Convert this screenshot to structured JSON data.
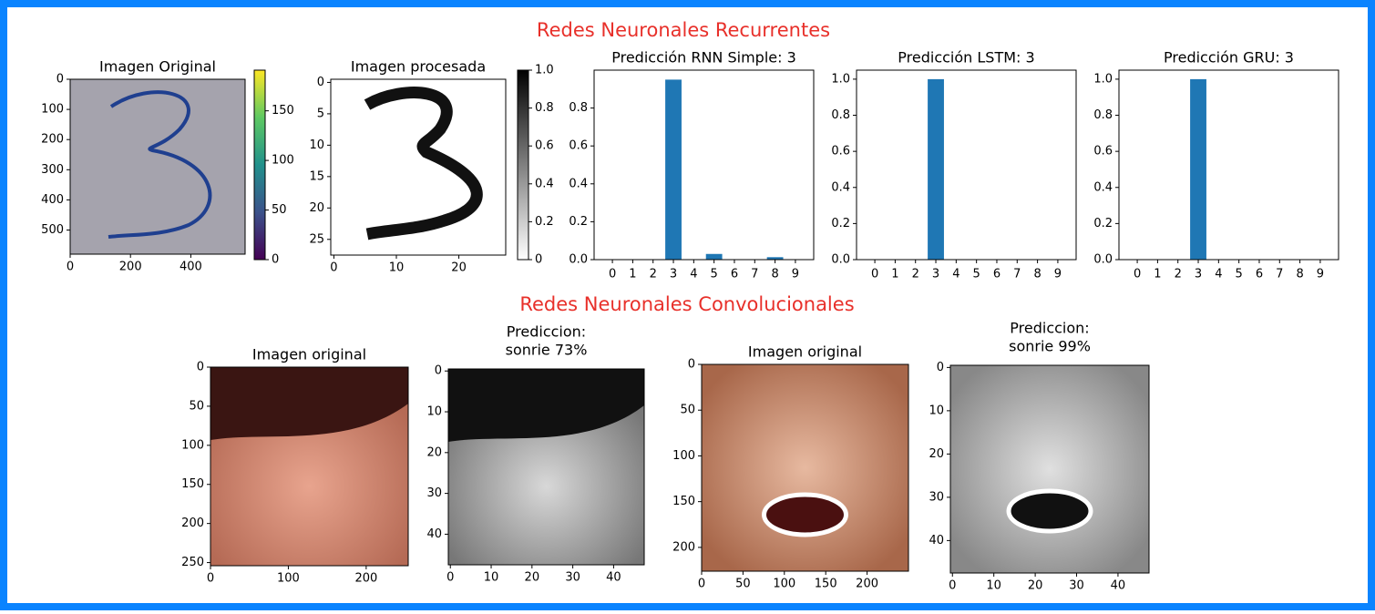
{
  "headings": [
    "Redes Neuronales Recurrentes",
    "Redes Neuronales Convolucionales"
  ],
  "chart_data": [
    {
      "type": "image",
      "title": "Imagen Original",
      "xlim": [
        0,
        580
      ],
      "ylim": [
        580,
        0
      ],
      "xticks": [
        0,
        200,
        400
      ],
      "yticks": [
        0,
        100,
        200,
        300,
        400,
        500
      ],
      "colorbar": {
        "ylim": [
          0,
          191
        ],
        "yticks": [
          0,
          50,
          100,
          150
        ],
        "colormap": "viridis"
      }
    },
    {
      "type": "image",
      "title": "Imagen procesada",
      "xlim": [
        -0.5,
        27.5
      ],
      "ylim": [
        27.5,
        -0.5
      ],
      "xticks": [
        0,
        10,
        20
      ],
      "yticks": [
        0,
        5,
        10,
        15,
        20,
        25
      ],
      "colorbar": {
        "ylim": [
          0,
          1.0
        ],
        "yticks": [
          0.0,
          0.2,
          0.4,
          0.6,
          0.8,
          {
            "value": 1.0,
            "label": "1.0"
          }
        ],
        "colormap": "gray"
      }
    },
    {
      "type": "bar",
      "title": "Predicción RNN Simple: 3",
      "categories": [
        "0",
        "1",
        "2",
        "3",
        "4",
        "5",
        "6",
        "7",
        "8",
        "9"
      ],
      "values": [
        0,
        0,
        0,
        0.95,
        0,
        0.03,
        0,
        0,
        0.013,
        0
      ],
      "color": "#1f77b4",
      "ylim": [
        0,
        1.0
      ],
      "yticks": [
        {
          "value": 0,
          "label": "0.0"
        },
        0.2,
        0.4,
        0.6,
        0.8
      ]
    },
    {
      "type": "bar",
      "title": "Predicción LSTM: 3",
      "categories": [
        "0",
        "1",
        "2",
        "3",
        "4",
        "5",
        "6",
        "7",
        "8",
        "9"
      ],
      "values": [
        0,
        0,
        0,
        1.0,
        0,
        0,
        0,
        0,
        0,
        0
      ],
      "color": "#1f77b4",
      "ylim": [
        0,
        1.05
      ],
      "yticks": [
        {
          "value": 0,
          "label": "0.0"
        },
        0.2,
        0.4,
        0.6,
        0.8,
        {
          "value": 1,
          "label": "1.0"
        }
      ]
    },
    {
      "type": "bar",
      "title": "Predicción GRU: 3",
      "categories": [
        "0",
        "1",
        "2",
        "3",
        "4",
        "5",
        "6",
        "7",
        "8",
        "9"
      ],
      "values": [
        0,
        0,
        0,
        1.0,
        0,
        0,
        0,
        0,
        0,
        0
      ],
      "color": "#1f77b4",
      "ylim": [
        0,
        1.05
      ],
      "yticks": [
        {
          "value": 0,
          "label": "0.0"
        },
        0.2,
        0.4,
        0.6,
        0.8,
        {
          "value": 1,
          "label": "1.0"
        }
      ]
    },
    {
      "type": "image",
      "title": "Imagen original",
      "xlim": [
        0,
        254
      ],
      "ylim": [
        254,
        0
      ],
      "xticks": [
        0,
        100,
        200
      ],
      "yticks": [
        0,
        50,
        100,
        150,
        200,
        250
      ]
    },
    {
      "type": "image",
      "title": [
        "Prediccion:",
        "sonrie 73%"
      ],
      "xlim": [
        -0.5,
        47.5
      ],
      "ylim": [
        47.5,
        -0.5
      ],
      "xticks": [
        0,
        10,
        20,
        30,
        40
      ],
      "yticks": [
        0,
        10,
        20,
        30,
        40
      ]
    },
    {
      "type": "image",
      "title": "Imagen original",
      "xlim": [
        0,
        250
      ],
      "ylim": [
        226,
        0
      ],
      "xticks": [
        0,
        50,
        100,
        150,
        200
      ],
      "yticks": [
        0,
        50,
        100,
        150,
        200
      ]
    },
    {
      "type": "image",
      "title": [
        "Prediccion:",
        "sonrie 99%"
      ],
      "xlim": [
        -0.5,
        47.5
      ],
      "ylim": [
        47.5,
        -0.5
      ],
      "xticks": [
        0,
        10,
        20,
        30,
        40
      ],
      "yticks": [
        0,
        10,
        20,
        30,
        40
      ]
    }
  ]
}
